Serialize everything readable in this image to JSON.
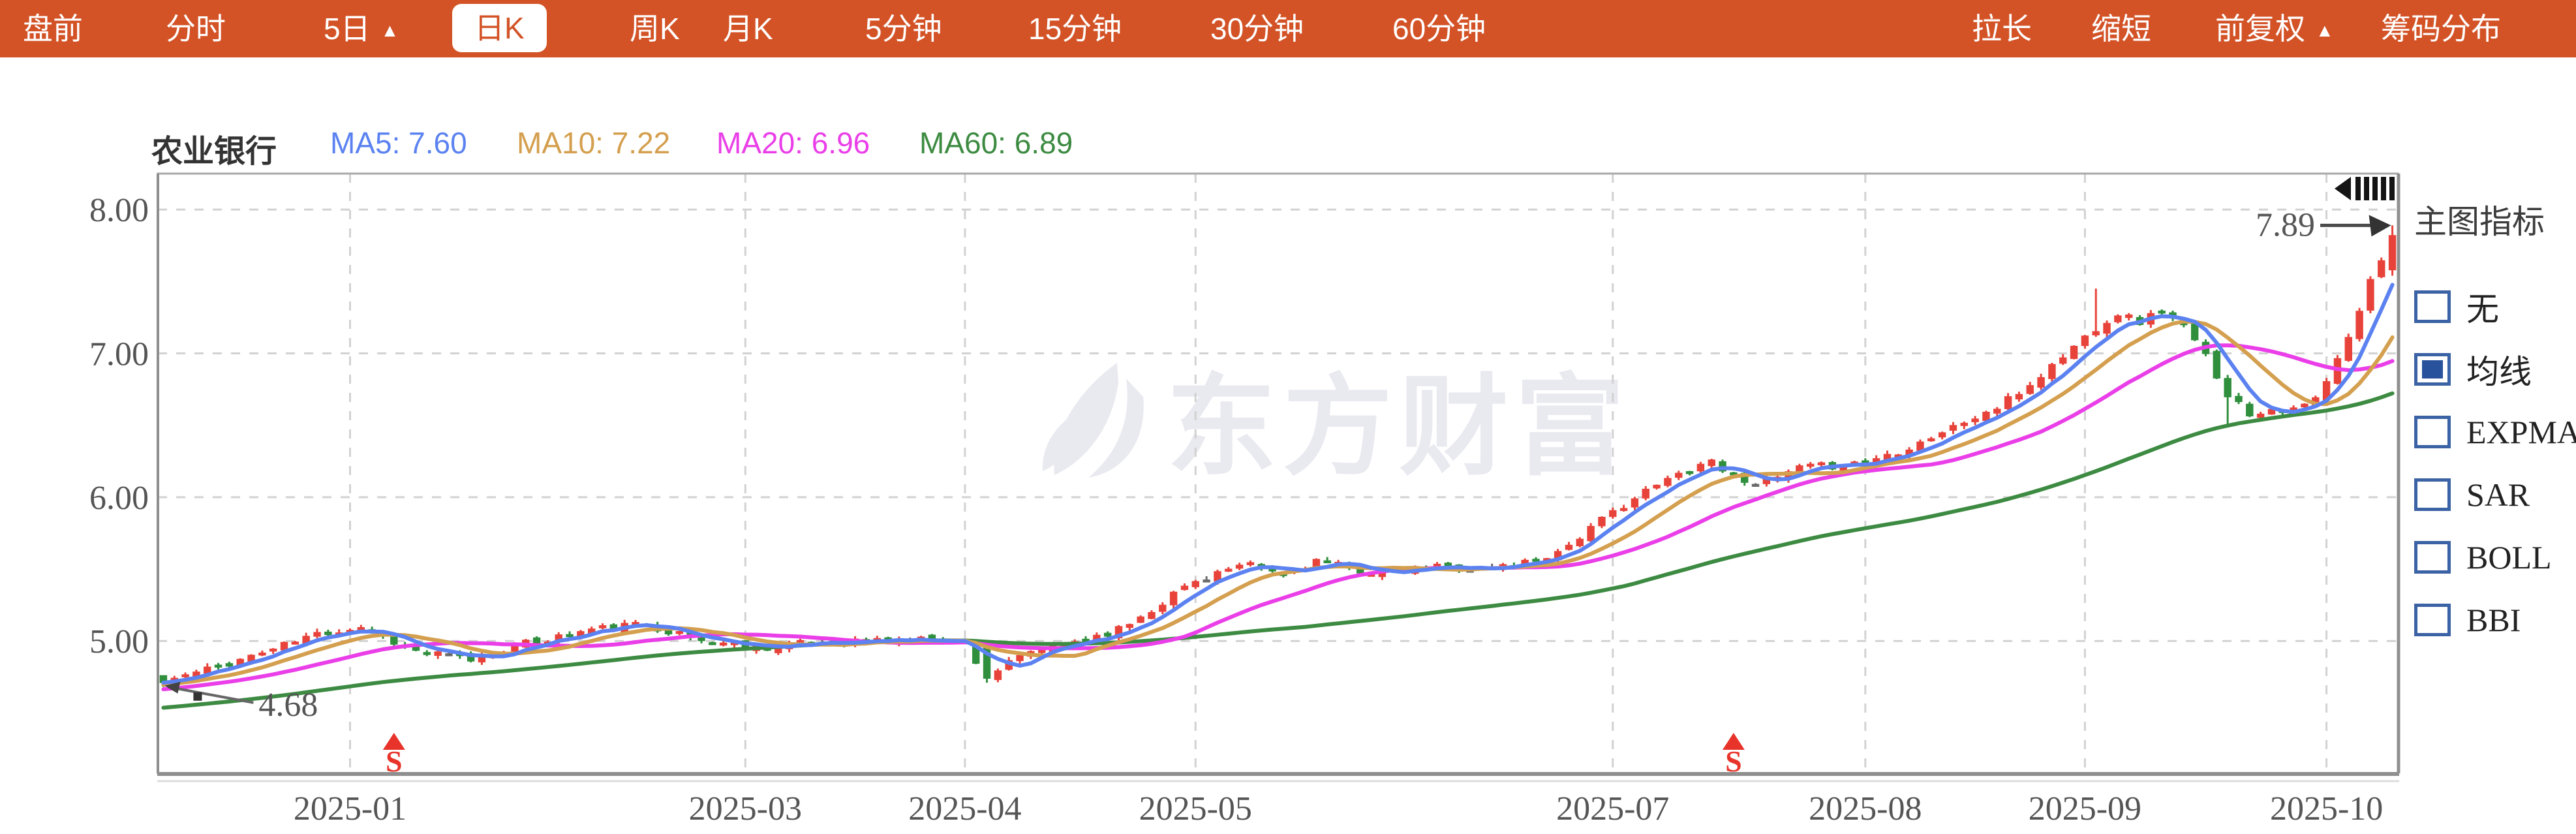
{
  "toolbar": {
    "background": "#d35327",
    "selected_text_color": "#d35327",
    "items_left": [
      {
        "label": "盘前"
      },
      {
        "label": "分时"
      },
      {
        "label": "5日",
        "arrow": true
      },
      {
        "label": "日K",
        "selected": true
      },
      {
        "label": "周K"
      },
      {
        "label": "月K"
      },
      {
        "label": "5分钟"
      },
      {
        "label": "15分钟"
      },
      {
        "label": "30分钟"
      },
      {
        "label": "60分钟"
      }
    ],
    "items_right": [
      {
        "label": "拉长"
      },
      {
        "label": "缩短"
      },
      {
        "label": "前复权",
        "arrow": true
      },
      {
        "label": "筹码分布"
      }
    ]
  },
  "legend": {
    "name": "农业银行",
    "mas": [
      {
        "label": "MA5: 7.60",
        "color": "#5b82f0"
      },
      {
        "label": "MA10: 7.22",
        "color": "#d49f4e"
      },
      {
        "label": "MA20: 6.96",
        "color": "#ea3fe8"
      },
      {
        "label": "MA60: 6.89",
        "color": "#3d8b42"
      }
    ]
  },
  "sidebar": {
    "title": "主图指标",
    "options": [
      {
        "label": "无",
        "checked": false
      },
      {
        "label": "均线",
        "checked": true
      },
      {
        "label": "EXPMA",
        "checked": false
      },
      {
        "label": "SAR",
        "checked": false
      },
      {
        "label": "BOLL",
        "checked": false
      },
      {
        "label": "BBI",
        "checked": false
      }
    ]
  },
  "watermark": {
    "text": "东方财富"
  },
  "chart_data": {
    "type": "candlestick",
    "title": "农业银行 日K (前复权)",
    "y_ticks": [
      {
        "value": 8,
        "label": "8.00"
      },
      {
        "value": 7,
        "label": "7.00"
      },
      {
        "value": 6,
        "label": "6.00"
      },
      {
        "value": 5,
        "label": "5.00"
      }
    ],
    "y_range": [
      4.08,
      8.25
    ],
    "num_days": 204,
    "x_ticks": [
      {
        "day": 17,
        "label": "2025-01"
      },
      {
        "day": 53,
        "label": "2025-03"
      },
      {
        "day": 73,
        "label": "2025-04"
      },
      {
        "day": 94,
        "label": "2025-05"
      },
      {
        "day": 132,
        "label": "2025-07"
      },
      {
        "day": 155,
        "label": "2025-08"
      },
      {
        "day": 175,
        "label": "2025-09"
      },
      {
        "day": 197,
        "label": "2025-10"
      }
    ],
    "close_keypoints": [
      [
        0,
        4.72
      ],
      [
        4,
        4.8
      ],
      [
        9,
        4.92
      ],
      [
        14,
        5.05
      ],
      [
        18,
        5.1
      ],
      [
        23,
        4.93
      ],
      [
        28,
        4.87
      ],
      [
        33,
        4.98
      ],
      [
        39,
        5.08
      ],
      [
        44,
        5.12
      ],
      [
        49,
        5.0
      ],
      [
        55,
        4.96
      ],
      [
        62,
        5.0
      ],
      [
        70,
        5.01
      ],
      [
        73,
        4.99
      ],
      [
        75,
        4.74
      ],
      [
        76,
        4.8
      ],
      [
        79,
        4.92
      ],
      [
        83,
        5.0
      ],
      [
        87,
        5.08
      ],
      [
        90,
        5.22
      ],
      [
        93,
        5.38
      ],
      [
        96,
        5.48
      ],
      [
        99,
        5.52
      ],
      [
        102,
        5.46
      ],
      [
        105,
        5.56
      ],
      [
        108,
        5.5
      ],
      [
        112,
        5.47
      ],
      [
        116,
        5.52
      ],
      [
        120,
        5.5
      ],
      [
        124,
        5.55
      ],
      [
        127,
        5.62
      ],
      [
        130,
        5.78
      ],
      [
        133,
        5.95
      ],
      [
        136,
        6.08
      ],
      [
        139,
        6.2
      ],
      [
        141,
        6.26
      ],
      [
        143,
        6.14
      ],
      [
        146,
        6.1
      ],
      [
        149,
        6.2
      ],
      [
        152,
        6.22
      ],
      [
        155,
        6.25
      ],
      [
        158,
        6.32
      ],
      [
        161,
        6.42
      ],
      [
        164,
        6.52
      ],
      [
        167,
        6.62
      ],
      [
        170,
        6.78
      ],
      [
        173,
        6.98
      ],
      [
        176,
        7.18
      ],
      [
        178,
        7.28
      ],
      [
        180,
        7.22
      ],
      [
        182,
        7.3
      ],
      [
        184,
        7.18
      ],
      [
        186,
        6.98
      ],
      [
        188,
        6.72
      ],
      [
        190,
        6.58
      ],
      [
        192,
        6.62
      ],
      [
        194,
        6.6
      ],
      [
        196,
        6.68
      ],
      [
        197,
        6.8
      ],
      [
        198,
        6.95
      ],
      [
        199,
        7.1
      ],
      [
        200,
        7.3
      ],
      [
        201,
        7.5
      ],
      [
        202,
        7.66
      ],
      [
        203,
        7.82
      ]
    ],
    "prehistory": {
      "days": 60,
      "from": 4.34,
      "to": 4.72
    },
    "seed": 11,
    "noise": 0.028,
    "open_noise": 0.018,
    "wick": 0.022,
    "overrides": [
      {
        "day": 0,
        "open": 4.76,
        "close": 4.71,
        "low": 4.68
      },
      {
        "day": 75,
        "open": 4.96,
        "close": 4.74,
        "low": 4.71
      },
      {
        "day": 176,
        "high": 7.45
      },
      {
        "day": 188,
        "low": 6.5
      },
      {
        "day": 203,
        "open": 7.58,
        "close": 7.82,
        "high": 7.89,
        "low": 7.54
      }
    ],
    "ma_windows": [
      {
        "n": 5,
        "color": "#5b82f0"
      },
      {
        "n": 10,
        "color": "#d49f4e"
      },
      {
        "n": 20,
        "color": "#ea3fe8"
      },
      {
        "n": 60,
        "color": "#3d8b42"
      }
    ],
    "annotations": {
      "low": {
        "day": 0,
        "price": 4.68,
        "label": "4.68"
      },
      "high": {
        "day": 203,
        "price": 7.89,
        "label": "7.89"
      }
    },
    "sell_markers": {
      "symbol": "S",
      "days": [
        21,
        143
      ]
    },
    "colors": {
      "up": "#e8433a",
      "down": "#2f8f3c",
      "doji": "#6b6b6b",
      "grid": "#d2d2d2",
      "frame": "#a8a8a8",
      "axis_dark": "#8f8f8f",
      "tick_text": "#555555",
      "annotation": "#4a4a4a",
      "marker": "#e8332a",
      "watermark": "#e9e9f0"
    },
    "grid": "dashed",
    "legend_position": "top-left"
  }
}
